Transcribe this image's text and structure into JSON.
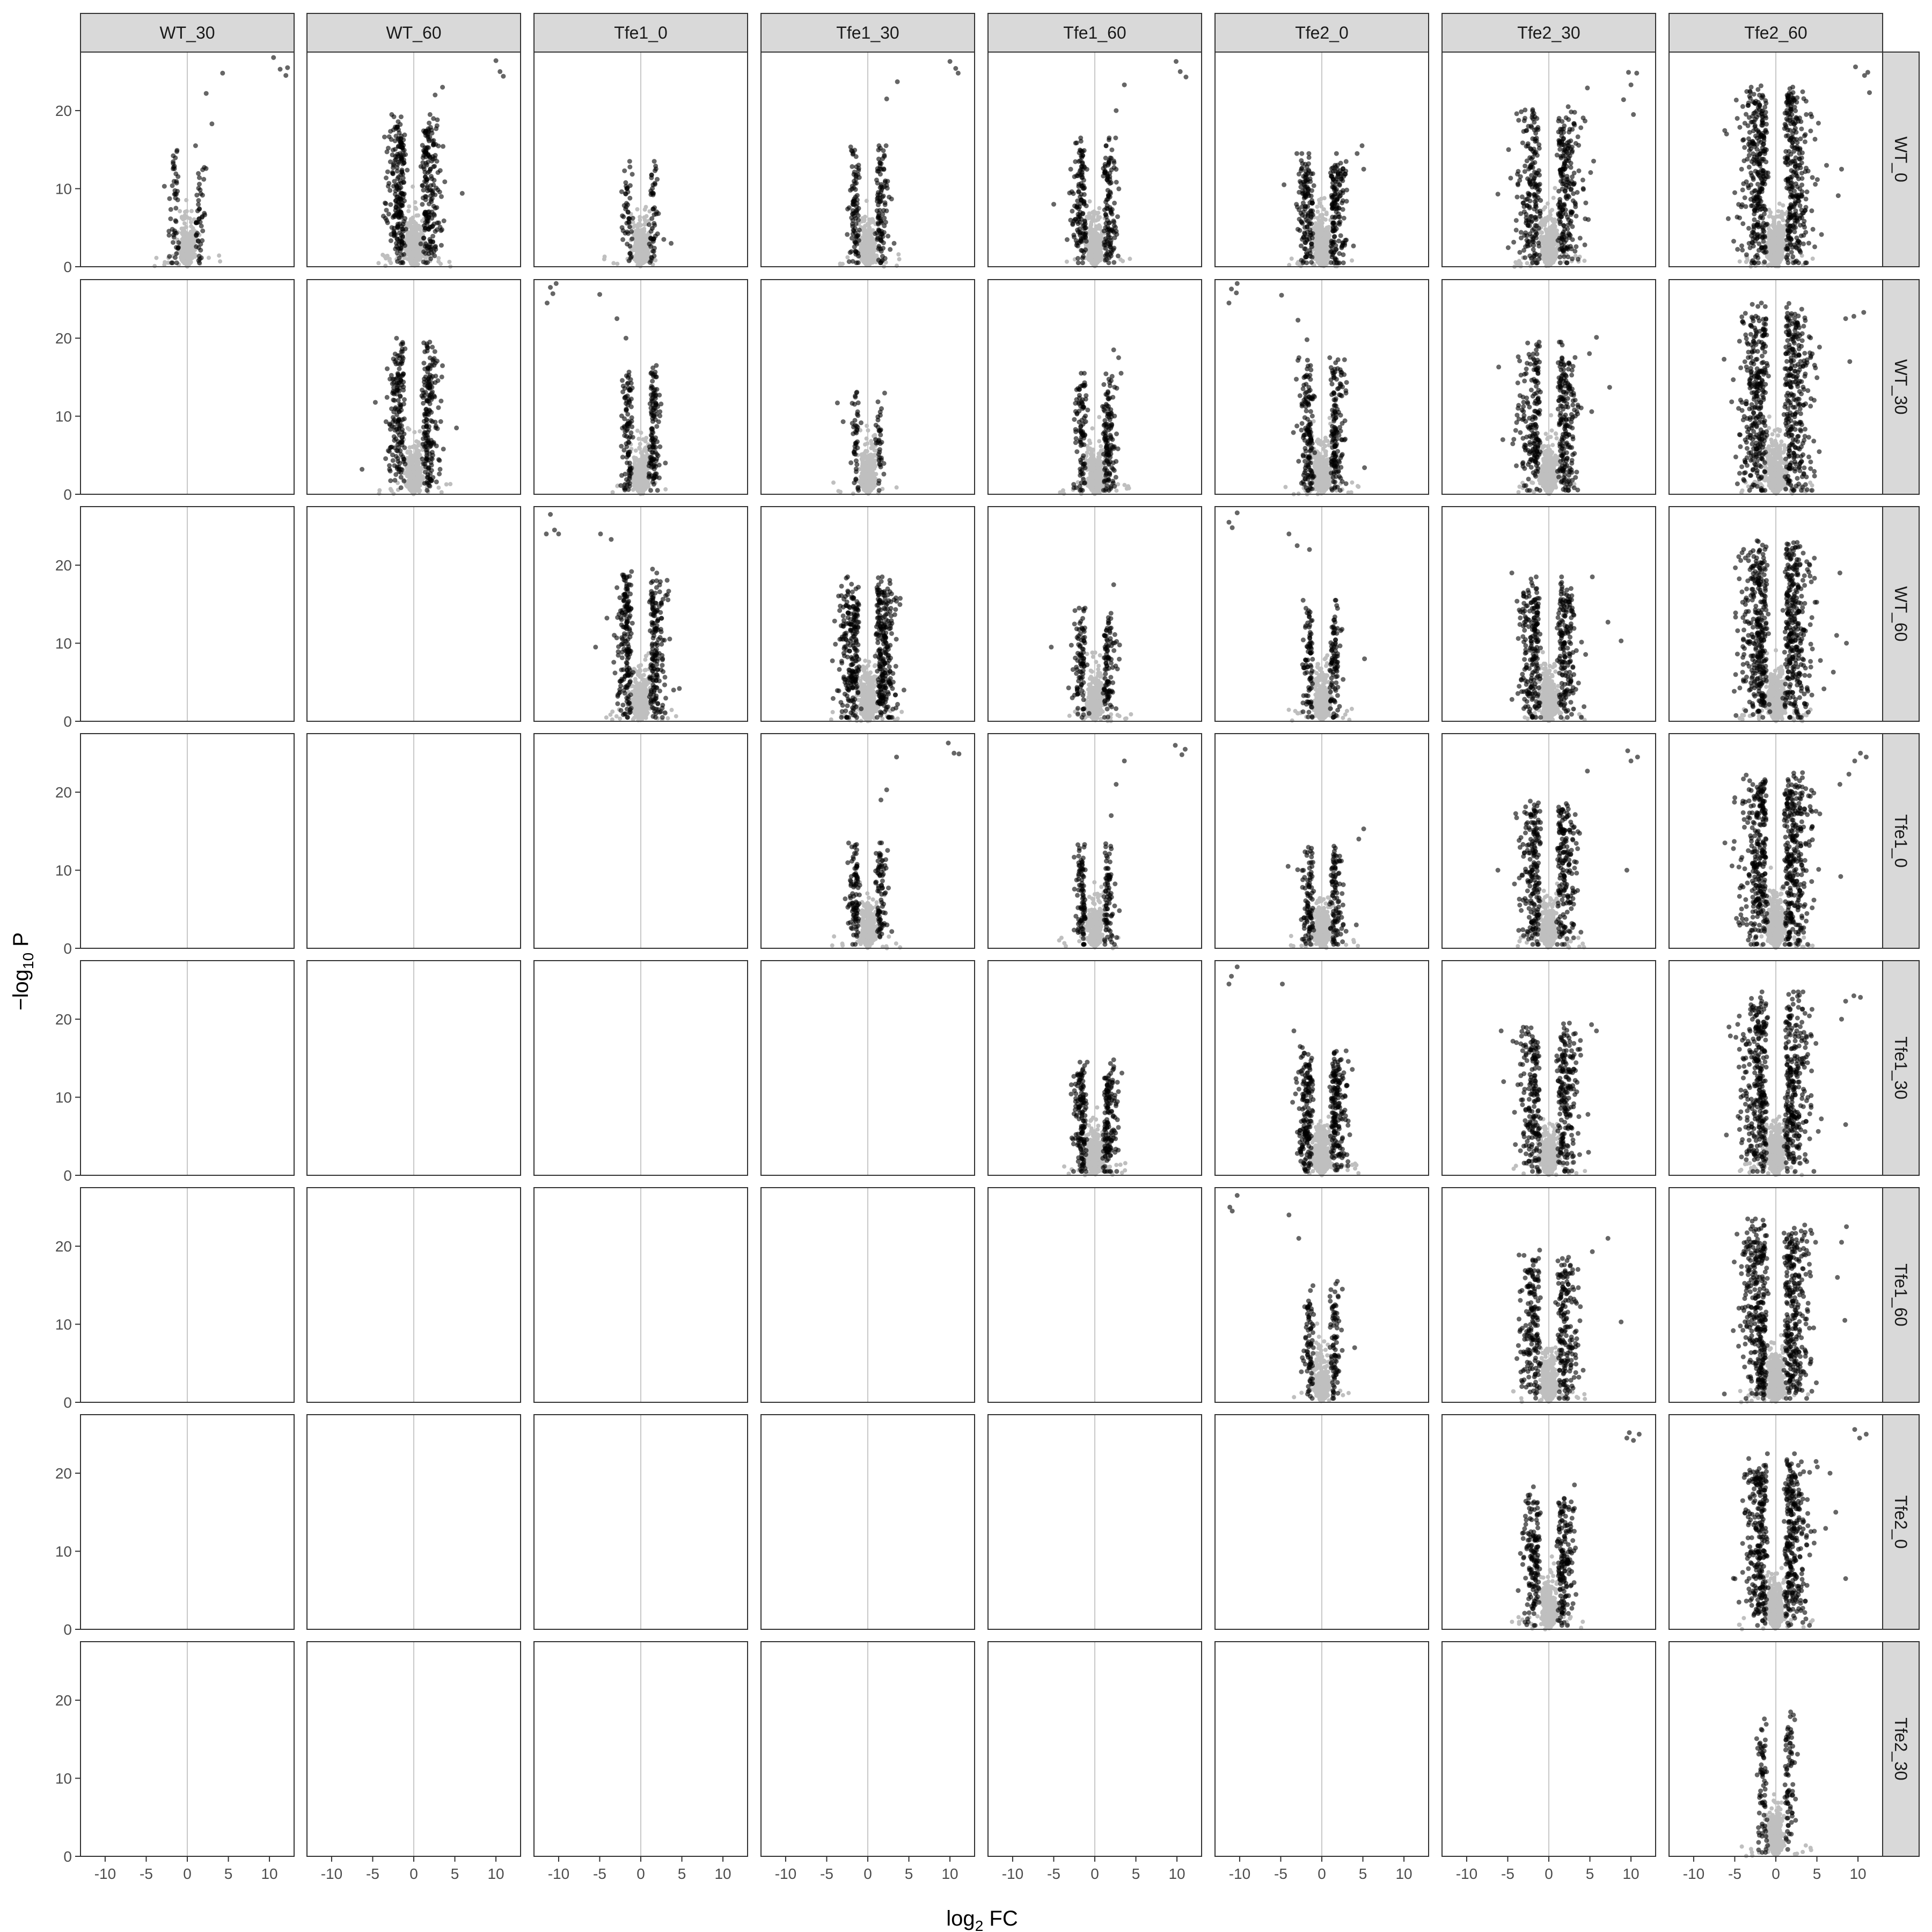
{
  "chart_data": {
    "type": "scatter",
    "subtype": "volcano-facet-grid",
    "title": "",
    "xlabel": {
      "main": "log",
      "sub": "2",
      "tail": " FC"
    },
    "ylabel": {
      "main": "−log",
      "sub": "10",
      "tail": " P"
    },
    "xlim": [
      -13,
      13
    ],
    "ylim": [
      0,
      27.5
    ],
    "x_ticks": [
      -10,
      -5,
      0,
      5,
      10
    ],
    "x_tick_labels": [
      "-10",
      "-5",
      "0",
      "5",
      "10"
    ],
    "y_ticks": [
      0,
      10,
      20
    ],
    "y_tick_labels": [
      "0",
      "10",
      "20"
    ],
    "columns": [
      "WT_30",
      "WT_60",
      "Tfe1_0",
      "Tfe1_30",
      "Tfe1_60",
      "Tfe2_0",
      "Tfe2_30",
      "Tfe2_60"
    ],
    "rows": [
      "WT_0",
      "WT_30",
      "WT_60",
      "Tfe1_0",
      "Tfe1_30",
      "Tfe1_60",
      "Tfe2_0",
      "Tfe2_30"
    ],
    "significant_color": "#000000",
    "nonsignificant_color": "#bfbfbf",
    "zero_line_color": "#c8c8c8",
    "strip_fill": "#d9d9d9",
    "grid": false,
    "legend": "none",
    "comparisons": [
      {
        "row": 0,
        "col": 0,
        "density": 0.3,
        "spread": 0.8,
        "ymax": 14,
        "outliers": [
          [
            10.5,
            26.8
          ],
          [
            11.3,
            25.3
          ],
          [
            12.2,
            25.5
          ],
          [
            12.0,
            24.5
          ],
          [
            4.3,
            24.8
          ],
          [
            2.3,
            22.2
          ],
          [
            3.0,
            18.3
          ]
        ]
      },
      {
        "row": 0,
        "col": 1,
        "density": 1.3,
        "spread": 1.8,
        "ymax": 18,
        "outliers": [
          [
            10.0,
            26.4
          ],
          [
            10.5,
            25.0
          ],
          [
            10.9,
            24.4
          ],
          [
            3.5,
            23.0
          ],
          [
            2.6,
            22.0
          ],
          [
            5.9,
            9.4
          ]
        ]
      },
      {
        "row": 0,
        "col": 2,
        "density": 0.3,
        "spread": 0.8,
        "ymax": 12,
        "outliers": [
          [
            2.0,
            11.2
          ],
          [
            2.8,
            3.5
          ],
          [
            3.7,
            3.0
          ]
        ]
      },
      {
        "row": 0,
        "col": 3,
        "density": 0.6,
        "spread": 0.9,
        "ymax": 14,
        "outliers": [
          [
            10.0,
            26.3
          ],
          [
            10.7,
            25.4
          ],
          [
            11.0,
            24.8
          ],
          [
            3.6,
            23.7
          ],
          [
            2.3,
            21.5
          ],
          [
            3.2,
            3.0
          ]
        ]
      },
      {
        "row": 0,
        "col": 4,
        "density": 0.8,
        "spread": 1.2,
        "ymax": 15,
        "outliers": [
          [
            9.9,
            26.3
          ],
          [
            10.4,
            25.0
          ],
          [
            11.1,
            24.3
          ],
          [
            3.6,
            23.3
          ],
          [
            2.6,
            20.0
          ],
          [
            -5.0,
            8.0
          ]
        ]
      },
      {
        "row": 0,
        "col": 5,
        "density": 0.9,
        "spread": 1.5,
        "ymax": 13,
        "outliers": [
          [
            -4.6,
            10.5
          ],
          [
            4.9,
            15.5
          ],
          [
            4.3,
            14.5
          ],
          [
            5.1,
            12.5
          ]
        ]
      },
      {
        "row": 0,
        "col": 6,
        "density": 1.3,
        "spread": 2.2,
        "ymax": 19,
        "outliers": [
          [
            9.7,
            24.9
          ],
          [
            10.7,
            24.8
          ],
          [
            10.0,
            23.3
          ],
          [
            10.3,
            19.5
          ],
          [
            9.1,
            21.4
          ],
          [
            4.7,
            22.9
          ],
          [
            -6.2,
            9.3
          ],
          [
            -4.9,
            15.0
          ]
        ]
      },
      {
        "row": 0,
        "col": 7,
        "density": 1.9,
        "spread": 2.6,
        "ymax": 22,
        "outliers": [
          [
            9.7,
            25.6
          ],
          [
            10.8,
            24.5
          ],
          [
            11.2,
            24.9
          ],
          [
            11.4,
            22.3
          ],
          [
            -6.0,
            17.0
          ],
          [
            -4.7,
            19.0
          ],
          [
            7.6,
            9.1
          ],
          [
            8.0,
            12.5
          ]
        ]
      },
      {
        "row": 1,
        "col": 1,
        "density": 1.1,
        "spread": 1.7,
        "ymax": 19,
        "outliers": [
          [
            -6.3,
            3.2
          ],
          [
            5.2,
            8.5
          ]
        ]
      },
      {
        "row": 1,
        "col": 2,
        "density": 0.7,
        "spread": 0.9,
        "ymax": 15,
        "outliers": [
          [
            -11.0,
            26.5
          ],
          [
            -10.3,
            27.0
          ],
          [
            -10.7,
            25.7
          ],
          [
            -11.4,
            24.5
          ],
          [
            -5.0,
            25.6
          ],
          [
            -2.9,
            22.5
          ],
          [
            -1.8,
            20.0
          ],
          [
            3.0,
            4.0
          ]
        ]
      },
      {
        "row": 1,
        "col": 3,
        "density": 0.25,
        "spread": 0.6,
        "ymax": 12,
        "outliers": [
          [
            -3.7,
            11.7
          ],
          [
            -3.0,
            9.3
          ]
        ]
      },
      {
        "row": 1,
        "col": 4,
        "density": 0.7,
        "spread": 1.1,
        "ymax": 14,
        "outliers": [
          [
            2.3,
            18.5
          ],
          [
            2.9,
            17.5
          ],
          [
            3.2,
            15.5
          ]
        ]
      },
      {
        "row": 1,
        "col": 5,
        "density": 0.9,
        "spread": 1.4,
        "ymax": 16,
        "outliers": [
          [
            -11.0,
            26.3
          ],
          [
            -10.3,
            27.0
          ],
          [
            -10.4,
            25.8
          ],
          [
            -11.3,
            24.5
          ],
          [
            -4.9,
            25.5
          ],
          [
            -2.9,
            22.3
          ],
          [
            -1.8,
            19.8
          ],
          [
            5.2,
            3.4
          ]
        ]
      },
      {
        "row": 1,
        "col": 6,
        "density": 1.2,
        "spread": 2.0,
        "ymax": 18,
        "outliers": [
          [
            5.8,
            20.1
          ],
          [
            7.4,
            13.7
          ],
          [
            -6.1,
            16.3
          ],
          [
            -5.6,
            7.0
          ]
        ]
      },
      {
        "row": 1,
        "col": 7,
        "density": 1.9,
        "spread": 2.6,
        "ymax": 23,
        "outliers": [
          [
            9.5,
            22.8
          ],
          [
            10.7,
            23.3
          ],
          [
            8.5,
            22.5
          ],
          [
            -6.3,
            17.3
          ],
          [
            9.0,
            17.0
          ]
        ]
      },
      {
        "row": 2,
        "col": 2,
        "density": 1.1,
        "spread": 1.5,
        "ymax": 18,
        "outliers": [
          [
            -11.0,
            26.5
          ],
          [
            -10.5,
            24.5
          ],
          [
            -11.5,
            24.0
          ],
          [
            -10.0,
            24.0
          ],
          [
            -4.9,
            24.0
          ],
          [
            -3.6,
            23.3
          ],
          [
            -5.5,
            9.5
          ],
          [
            4.0,
            4.0
          ],
          [
            4.7,
            4.2
          ]
        ]
      },
      {
        "row": 2,
        "col": 3,
        "density": 1.5,
        "spread": 2.0,
        "ymax": 17,
        "outliers": [
          [
            4.4,
            4.0
          ],
          [
            -3.0,
            13.5
          ]
        ]
      },
      {
        "row": 2,
        "col": 4,
        "density": 0.6,
        "spread": 1.1,
        "ymax": 13,
        "outliers": [
          [
            -5.3,
            9.5
          ],
          [
            2.3,
            17.5
          ]
        ]
      },
      {
        "row": 2,
        "col": 5,
        "density": 0.55,
        "spread": 0.9,
        "ymax": 14,
        "outliers": [
          [
            -11.3,
            25.5
          ],
          [
            -10.3,
            26.7
          ],
          [
            -10.9,
            24.8
          ],
          [
            -4.0,
            24.0
          ],
          [
            -3.0,
            22.5
          ],
          [
            -1.5,
            22.0
          ],
          [
            5.2,
            8.0
          ]
        ]
      },
      {
        "row": 2,
        "col": 6,
        "density": 1.2,
        "spread": 2.0,
        "ymax": 17,
        "outliers": [
          [
            7.2,
            12.7
          ],
          [
            8.8,
            10.3
          ],
          [
            5.3,
            18.5
          ],
          [
            -4.5,
            19.0
          ]
        ]
      },
      {
        "row": 2,
        "col": 7,
        "density": 2.0,
        "spread": 2.6,
        "ymax": 22,
        "outliers": [
          [
            7.8,
            19.0
          ],
          [
            8.6,
            10.0
          ],
          [
            7.0,
            6.3
          ],
          [
            7.4,
            11.0
          ]
        ]
      },
      {
        "row": 3,
        "col": 3,
        "density": 0.55,
        "spread": 0.9,
        "ymax": 12,
        "outliers": [
          [
            9.8,
            26.3
          ],
          [
            10.5,
            25.0
          ],
          [
            11.1,
            24.9
          ],
          [
            3.5,
            24.5
          ],
          [
            2.3,
            20.3
          ],
          [
            1.6,
            19.0
          ]
        ]
      },
      {
        "row": 3,
        "col": 4,
        "density": 0.55,
        "spread": 0.9,
        "ymax": 12,
        "outliers": [
          [
            9.8,
            26.0
          ],
          [
            10.6,
            24.8
          ],
          [
            11.0,
            25.5
          ],
          [
            3.6,
            24.0
          ],
          [
            2.6,
            21.0
          ],
          [
            2.0,
            17.0
          ]
        ]
      },
      {
        "row": 3,
        "col": 5,
        "density": 0.6,
        "spread": 1.2,
        "ymax": 13,
        "outliers": [
          [
            5.1,
            15.3
          ],
          [
            4.5,
            14.0
          ],
          [
            4.2,
            3.0
          ],
          [
            -4.1,
            10.5
          ]
        ]
      },
      {
        "row": 3,
        "col": 6,
        "density": 1.2,
        "spread": 2.0,
        "ymax": 18,
        "outliers": [
          [
            9.6,
            25.3
          ],
          [
            10.8,
            24.5
          ],
          [
            10.0,
            24.0
          ],
          [
            9.5,
            10.0
          ],
          [
            -6.2,
            10.0
          ],
          [
            4.7,
            22.7
          ]
        ]
      },
      {
        "row": 3,
        "col": 7,
        "density": 1.9,
        "spread": 2.6,
        "ymax": 21,
        "outliers": [
          [
            10.3,
            25.0
          ],
          [
            11.0,
            24.5
          ],
          [
            9.6,
            24.0
          ],
          [
            8.9,
            22.3
          ],
          [
            7.8,
            21.0
          ],
          [
            7.9,
            9.2
          ],
          [
            -6.2,
            13.5
          ]
        ]
      },
      {
        "row": 4,
        "col": 4,
        "density": 0.9,
        "spread": 1.3,
        "ymax": 13,
        "outliers": [
          [
            2.3,
            14.8
          ],
          [
            -1.8,
            14.5
          ]
        ]
      },
      {
        "row": 4,
        "col": 5,
        "density": 1.1,
        "spread": 1.6,
        "ymax": 15,
        "outliers": [
          [
            -11.0,
            25.5
          ],
          [
            -10.3,
            26.7
          ],
          [
            -11.3,
            24.5
          ],
          [
            -4.8,
            24.5
          ],
          [
            -3.4,
            18.5
          ]
        ]
      },
      {
        "row": 4,
        "col": 6,
        "density": 1.2,
        "spread": 2.0,
        "ymax": 18,
        "outliers": [
          [
            5.2,
            19.3
          ],
          [
            5.8,
            18.5
          ],
          [
            -5.8,
            18.5
          ],
          [
            -5.5,
            12.0
          ]
        ]
      },
      {
        "row": 4,
        "col": 7,
        "density": 1.8,
        "spread": 2.6,
        "ymax": 22,
        "outliers": [
          [
            8.5,
            22.3
          ],
          [
            9.5,
            23.0
          ],
          [
            10.3,
            22.8
          ],
          [
            8.0,
            20.0
          ],
          [
            8.5,
            6.5
          ],
          [
            -5.7,
            19.0
          ]
        ]
      },
      {
        "row": 5,
        "col": 5,
        "density": 0.5,
        "spread": 0.8,
        "ymax": 14,
        "outliers": [
          [
            -11.2,
            25.0
          ],
          [
            -10.3,
            26.5
          ],
          [
            -10.9,
            24.5
          ],
          [
            -4.0,
            24.0
          ],
          [
            -2.8,
            21.0
          ],
          [
            2.5,
            14.5
          ],
          [
            4.0,
            7.0
          ]
        ]
      },
      {
        "row": 5,
        "col": 6,
        "density": 1.1,
        "spread": 1.9,
        "ymax": 18,
        "outliers": [
          [
            7.2,
            21.0
          ],
          [
            8.8,
            10.3
          ],
          [
            5.3,
            19.3
          ]
        ]
      },
      {
        "row": 5,
        "col": 7,
        "density": 1.9,
        "spread": 2.5,
        "ymax": 22,
        "outliers": [
          [
            8.6,
            22.5
          ],
          [
            8.0,
            20.5
          ],
          [
            8.4,
            10.5
          ],
          [
            7.5,
            16.0
          ]
        ]
      },
      {
        "row": 6,
        "col": 6,
        "density": 1.0,
        "spread": 1.6,
        "ymax": 17,
        "outliers": [
          [
            9.8,
            25.2
          ],
          [
            10.3,
            24.2
          ],
          [
            11.0,
            25.0
          ],
          [
            9.5,
            24.5
          ]
        ]
      },
      {
        "row": 6,
        "col": 7,
        "density": 1.7,
        "spread": 2.3,
        "ymax": 21,
        "outliers": [
          [
            9.6,
            25.6
          ],
          [
            10.2,
            24.5
          ],
          [
            11.0,
            25.0
          ],
          [
            6.6,
            20.0
          ],
          [
            7.3,
            15.0
          ],
          [
            8.5,
            6.5
          ],
          [
            4.9,
            21.5
          ]
        ]
      },
      {
        "row": 7,
        "col": 7,
        "density": 0.45,
        "spread": 0.9,
        "ymax": 17,
        "outliers": [
          [
            1.8,
            18.5
          ],
          [
            2.3,
            17.5
          ],
          [
            -1.8,
            14.0
          ]
        ]
      }
    ]
  }
}
